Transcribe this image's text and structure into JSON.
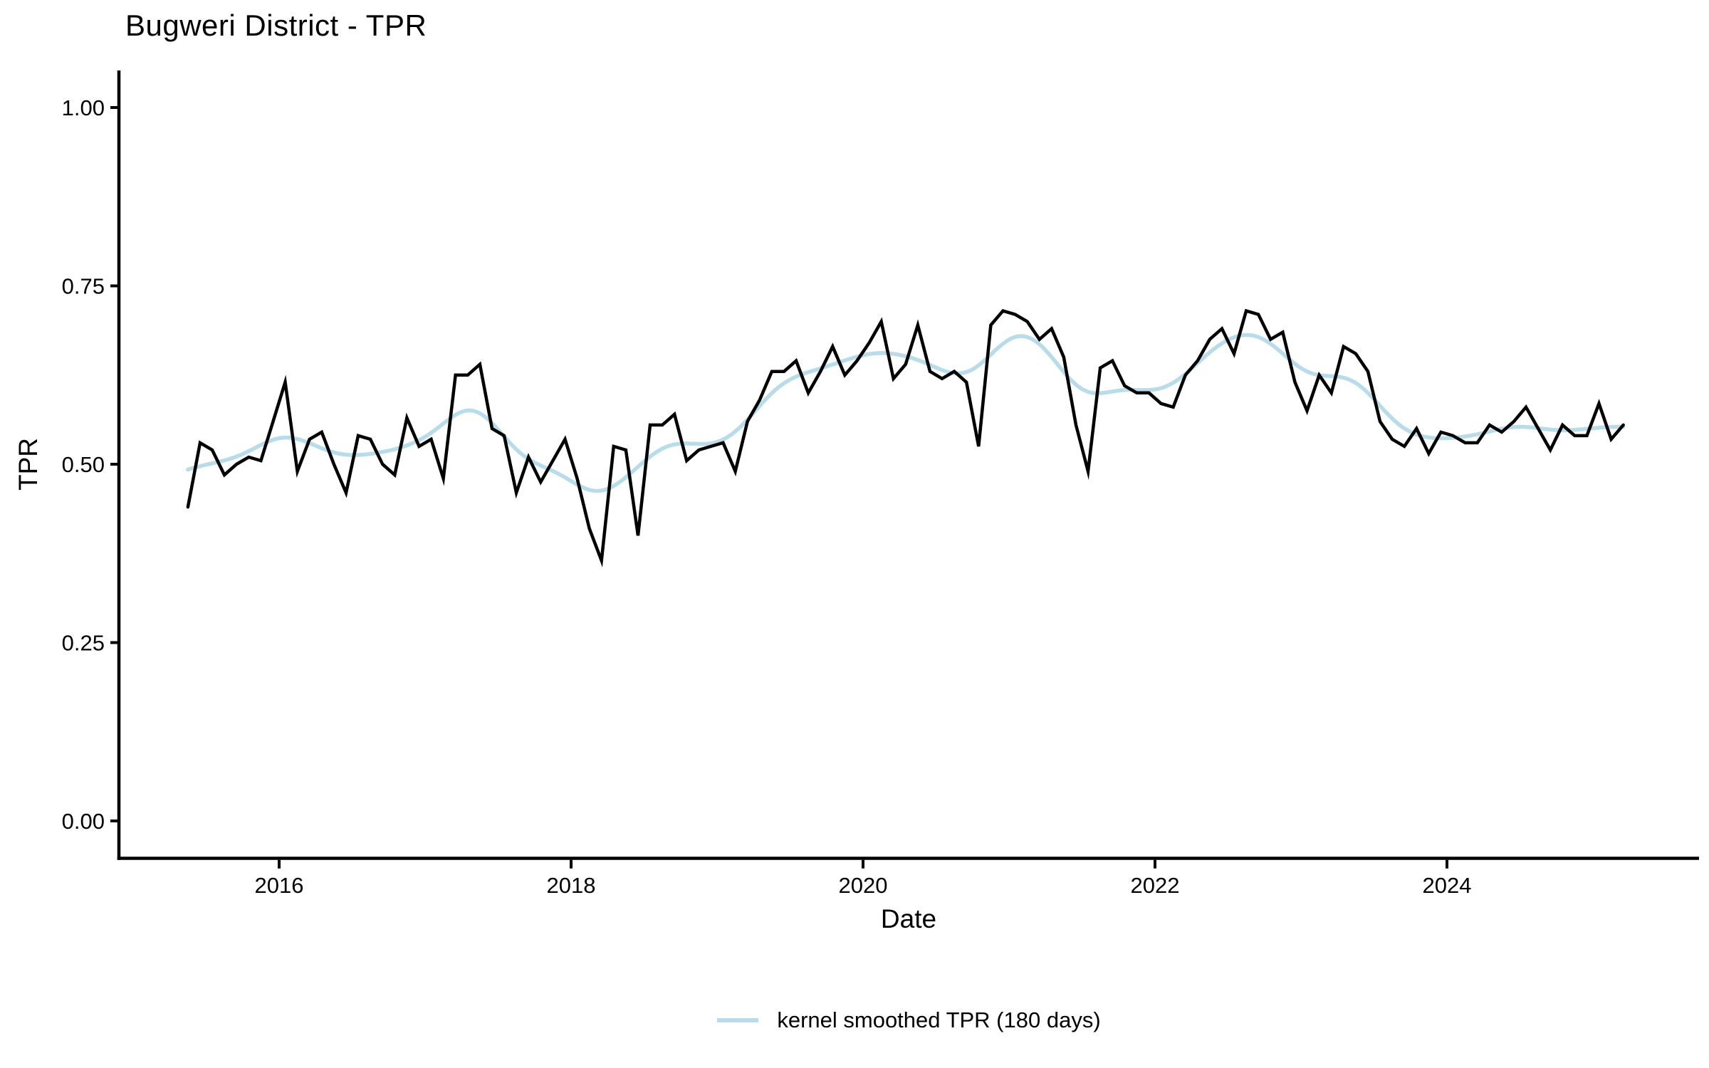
{
  "title": "Bugweri District - TPR",
  "x_axis": {
    "label": "Date",
    "tick_values": [
      2016,
      2018,
      2020,
      2022,
      2024
    ],
    "tick_labels": [
      "2016",
      "2018",
      "2020",
      "2022",
      "2024"
    ]
  },
  "y_axis": {
    "label": "TPR",
    "tick_values": [
      0.0,
      0.25,
      0.5,
      0.75,
      1.0
    ],
    "tick_labels": [
      "0.00",
      "0.25",
      "0.50",
      "0.75",
      "1.00"
    ]
  },
  "legend": {
    "label": "kernel smoothed TPR (180 days)",
    "swatch_color": "#b9dcea"
  },
  "colors": {
    "raw_line": "#000000",
    "smoothed_line": "#b9dcea",
    "axis": "#000000",
    "background": "#ffffff"
  },
  "chart_data": {
    "type": "line",
    "title": "Bugweri District - TPR",
    "xlabel": "Date",
    "ylabel": "TPR",
    "ylim": [
      0,
      1
    ],
    "x_start": "2015-05",
    "x_end": "2025-03",
    "frequency": "monthly",
    "grid": false,
    "legend_position": "bottom",
    "series": [
      {
        "name": "TPR",
        "color": "#000000",
        "values": [
          0.44,
          0.53,
          0.52,
          0.485,
          0.5,
          0.51,
          0.505,
          0.56,
          0.615,
          0.49,
          0.535,
          0.545,
          0.5,
          0.46,
          0.54,
          0.535,
          0.5,
          0.485,
          0.565,
          0.525,
          0.535,
          0.48,
          0.625,
          0.625,
          0.64,
          0.55,
          0.54,
          0.46,
          0.51,
          0.475,
          0.505,
          0.535,
          0.48,
          0.41,
          0.365,
          0.525,
          0.52,
          0.4,
          0.555,
          0.555,
          0.57,
          0.505,
          0.52,
          0.525,
          0.53,
          0.49,
          0.56,
          0.59,
          0.63,
          0.63,
          0.645,
          0.6,
          0.63,
          0.665,
          0.625,
          0.645,
          0.67,
          0.7,
          0.62,
          0.64,
          0.695,
          0.63,
          0.62,
          0.63,
          0.615,
          0.525,
          0.695,
          0.715,
          0.71,
          0.7,
          0.675,
          0.69,
          0.65,
          0.555,
          0.49,
          0.635,
          0.645,
          0.61,
          0.6,
          0.6,
          0.585,
          0.58,
          0.625,
          0.645,
          0.675,
          0.69,
          0.655,
          0.715,
          0.71,
          0.675,
          0.685,
          0.615,
          0.575,
          0.625,
          0.6,
          0.665,
          0.655,
          0.63,
          0.56,
          0.535,
          0.525,
          0.55,
          0.515,
          0.545,
          0.54,
          0.53,
          0.53,
          0.555,
          0.545,
          0.56,
          0.58,
          0.55,
          0.52,
          0.555,
          0.54,
          0.54,
          0.585,
          0.535,
          0.555
        ]
      },
      {
        "name": "kernel smoothed TPR (180 days)",
        "color": "#b9dcea",
        "derived_from": "TPR",
        "method": "gaussian kernel smoothing",
        "bandwidth_days": 180
      }
    ]
  }
}
